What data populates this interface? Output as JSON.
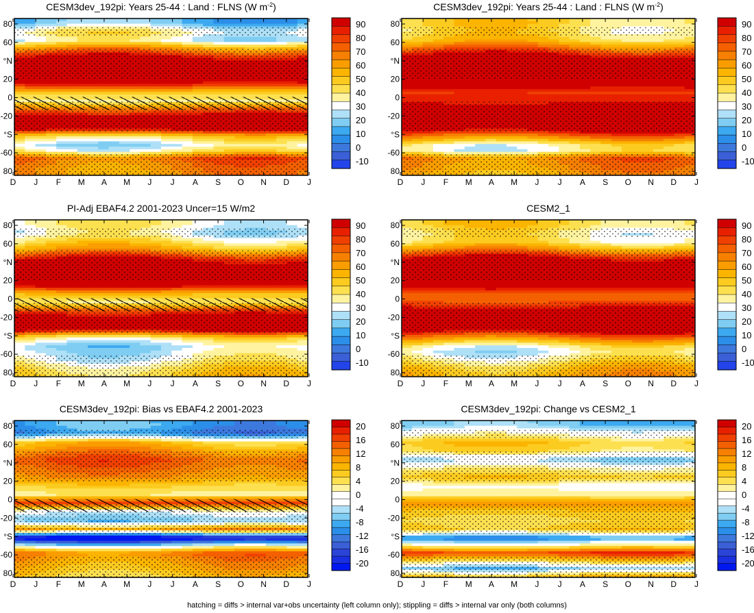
{
  "figure": {
    "caption": "hatching = diffs > internal var+obs uncertainty (left column only); stippling = diffs > internal var only (both columns)",
    "lat_ticks": [
      "80",
      "60",
      "°N",
      "20",
      "0",
      "-20",
      "°S",
      "-60",
      "80"
    ],
    "month_ticks": [
      "D",
      "J",
      "F",
      "M",
      "A",
      "M",
      "J",
      "J",
      "A",
      "S",
      "O",
      "N",
      "D",
      "J"
    ],
    "abs_colorbar": {
      "labels": [
        "90",
        "80",
        "70",
        "60",
        "50",
        "40",
        "30",
        "20",
        "10",
        "0",
        "-10"
      ],
      "colors": [
        "#d00000",
        "#e82000",
        "#f04000",
        "#f46000",
        "#f78000",
        "#fa9d00",
        "#fbb400",
        "#fccb20",
        "#fde050",
        "#fff3a0",
        "#ffffff",
        "#aee0f7",
        "#7fcdf2",
        "#3ca9f0",
        "#2b8ee8",
        "#3d78dd",
        "#3a5fd6",
        "#2244ea"
      ]
    },
    "diff_colorbar": {
      "labels": [
        "20",
        "16",
        "12",
        "8",
        "4",
        "0",
        "-4",
        "-8",
        "-12",
        "-16",
        "-20"
      ],
      "colors": [
        "#d00000",
        "#e82000",
        "#f04000",
        "#f46000",
        "#f78000",
        "#fa9d00",
        "#fbb400",
        "#fccb20",
        "#fde050",
        "#fff3a0",
        "#ffffff",
        "#ffffff",
        "#aee0f7",
        "#7fcdf2",
        "#3ca9f0",
        "#2b8ee8",
        "#3d78dd",
        "#3a5fd6",
        "#2a44d8",
        "#1a30e0",
        "#0018f0"
      ]
    }
  },
  "chart_data": [
    {
      "type": "heatmap",
      "title": "CESM3dev_192pi: Years 25-44 : Land : FLNS (W m",
      "title_sup": "-2",
      "title_end": ")",
      "variable": "FLNS",
      "units": "W m-2",
      "x_axis": "month (D through J)",
      "y_axis": "latitude",
      "ylim": [
        -90,
        90
      ],
      "colorbar_range": [
        -10,
        90
      ],
      "zonal_profile": {
        "lat": [
          85,
          75,
          65,
          55,
          45,
          35,
          25,
          15,
          5,
          -5,
          -15,
          -25,
          -35,
          -45,
          -55,
          -62,
          -70,
          -80,
          -88
        ],
        "value": [
          18,
          38,
          30,
          62,
          88,
          100,
          95,
          85,
          48,
          38,
          72,
          96,
          100,
          46,
          28,
          38,
          70,
          64,
          62
        ]
      },
      "seasonal_shift": 10,
      "hatching_lat": [
        -15,
        0
      ]
    },
    {
      "type": "heatmap",
      "title": "CESM3dev_192pi: Years 25-44 : Land : FLNS (W m",
      "title_sup": "-2",
      "title_end": ")",
      "variable": "FLNS",
      "units": "W m-2",
      "x_axis": "month (D through J)",
      "y_axis": "latitude",
      "ylim": [
        -90,
        90
      ],
      "colorbar_range": [
        -10,
        90
      ],
      "zonal_profile": {
        "lat": [
          85,
          75,
          65,
          55,
          45,
          35,
          25,
          15,
          5,
          -5,
          -15,
          -25,
          -35,
          -45,
          -55,
          -62,
          -70,
          -80,
          -88
        ],
        "value": [
          45,
          42,
          48,
          70,
          92,
          100,
          98,
          92,
          78,
          82,
          95,
          100,
          98,
          68,
          38,
          36,
          66,
          62,
          58
        ]
      },
      "seasonal_shift": 10,
      "hatching_lat": []
    },
    {
      "type": "heatmap",
      "title": "PI-Adj EBAF4.2 2001-2023 Uncer=15 W/m2",
      "x_axis": "month (D through J)",
      "y_axis": "latitude",
      "ylim": [
        -90,
        90
      ],
      "colorbar_range": [
        -10,
        90
      ],
      "zonal_profile": {
        "lat": [
          85,
          75,
          65,
          55,
          45,
          35,
          25,
          15,
          5,
          -5,
          -15,
          -25,
          -35,
          -45,
          -55,
          -62,
          -70,
          -80,
          -88
        ],
        "value": [
          36,
          30,
          42,
          58,
          85,
          98,
          96,
          90,
          52,
          40,
          78,
          98,
          96,
          42,
          26,
          30,
          34,
          44,
          48
        ]
      },
      "seasonal_shift": 10,
      "hatching_lat": [
        -15,
        0
      ]
    },
    {
      "type": "heatmap",
      "title": "CESM2_1",
      "x_axis": "month (D through J)",
      "y_axis": "latitude",
      "ylim": [
        -90,
        90
      ],
      "colorbar_range": [
        -10,
        90
      ],
      "zonal_profile": {
        "lat": [
          85,
          75,
          65,
          55,
          45,
          35,
          25,
          15,
          5,
          -5,
          -15,
          -25,
          -35,
          -45,
          -55,
          -62,
          -70,
          -80,
          -88
        ],
        "value": [
          46,
          38,
          40,
          62,
          90,
          100,
          98,
          92,
          70,
          74,
          92,
          98,
          96,
          66,
          38,
          32,
          40,
          52,
          56
        ]
      },
      "seasonal_shift": 10,
      "hatching_lat": []
    },
    {
      "type": "heatmap",
      "title": "CESM3dev_192pi: Bias vs EBAF4.2 2001-2023",
      "x_axis": "month (D through J)",
      "y_axis": "latitude",
      "ylim": [
        -90,
        90
      ],
      "colorbar_range": [
        -20,
        20
      ],
      "zonal_profile": {
        "lat": [
          85,
          75,
          65,
          55,
          45,
          35,
          25,
          15,
          5,
          -5,
          -15,
          -25,
          -35,
          -45,
          -55,
          -62,
          -70,
          -80,
          -88
        ],
        "value": [
          -8,
          -10,
          6,
          10,
          14,
          12,
          10,
          5,
          2,
          16,
          -2,
          -6,
          10,
          -22,
          0,
          12,
          10,
          8,
          6
        ]
      },
      "seasonal_shift": 3,
      "hatching_lat": [
        -15,
        0
      ]
    },
    {
      "type": "heatmap",
      "title": "CESM3dev_192pi: Change vs CESM2_1",
      "x_axis": "month (D through J)",
      "y_axis": "latitude",
      "ylim": [
        -90,
        90
      ],
      "colorbar_range": [
        -20,
        20
      ],
      "zonal_profile": {
        "lat": [
          85,
          75,
          65,
          55,
          45,
          35,
          25,
          15,
          5,
          -5,
          -15,
          -25,
          -35,
          -45,
          -55,
          -62,
          -70,
          -80,
          -88
        ],
        "value": [
          -6,
          0,
          6,
          4,
          -5,
          2,
          6,
          0,
          2,
          10,
          6,
          4,
          6,
          -10,
          4,
          16,
          6,
          -6,
          6
        ]
      },
      "seasonal_shift": 2,
      "hatching_lat": []
    }
  ]
}
